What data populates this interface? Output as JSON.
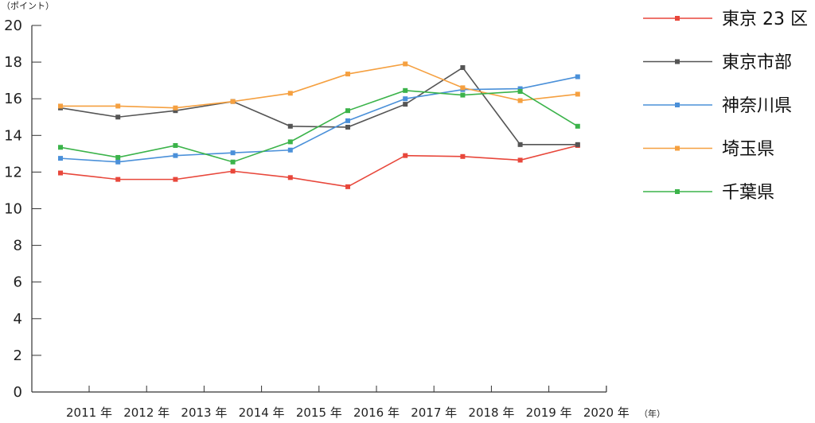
{
  "chart_data": {
    "type": "line",
    "y_unit_label": "（ポイント）",
    "x_unit_label": "（年）",
    "categories": [
      "2011 年",
      "2012 年",
      "2013 年",
      "2014 年",
      "2015 年",
      "2016 年",
      "2017 年",
      "2018 年",
      "2019 年",
      "2020 年"
    ],
    "y_ticks": [
      "0",
      "2",
      "4",
      "6",
      "8",
      "10",
      "12",
      "14",
      "16",
      "18",
      "20"
    ],
    "ylim": [
      0,
      20
    ],
    "grid": false,
    "legend_position": "right",
    "series": [
      {
        "name": "東京 23 区",
        "color": "#e8473b",
        "values": [
          11.95,
          11.6,
          11.6,
          12.05,
          11.7,
          11.2,
          12.9,
          12.85,
          12.65,
          13.45
        ]
      },
      {
        "name": "東京市部",
        "color": "#555555",
        "values": [
          15.5,
          15.0,
          15.35,
          15.85,
          14.5,
          14.45,
          15.7,
          17.7,
          13.5,
          13.5
        ]
      },
      {
        "name": "神奈川県",
        "color": "#4a90d9",
        "values": [
          12.75,
          12.55,
          12.9,
          13.05,
          13.2,
          14.8,
          16.0,
          16.5,
          16.55,
          17.2
        ]
      },
      {
        "name": "埼玉県",
        "color": "#f5a040",
        "values": [
          15.6,
          15.6,
          15.5,
          15.85,
          16.3,
          17.35,
          17.9,
          16.6,
          15.9,
          16.25
        ]
      },
      {
        "name": "千葉県",
        "color": "#3bb34a",
        "values": [
          13.35,
          12.8,
          13.45,
          12.55,
          13.65,
          15.35,
          16.45,
          16.2,
          16.4,
          14.5
        ]
      }
    ]
  }
}
